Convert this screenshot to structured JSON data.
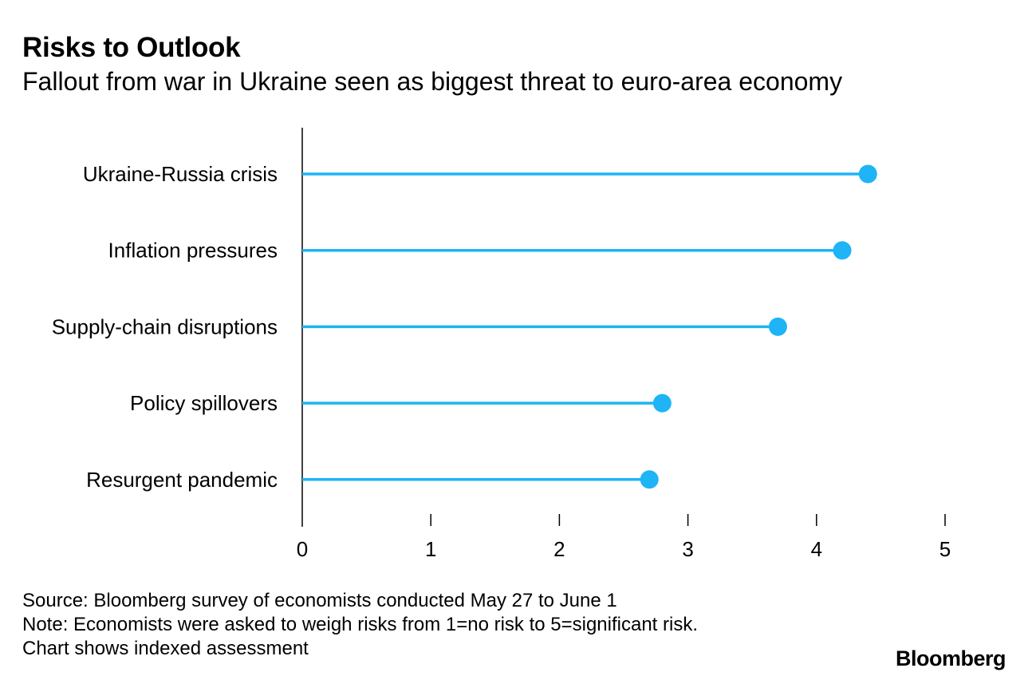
{
  "title": "Risks to Outlook",
  "subtitle": "Fallout from war in Ukraine seen as biggest threat to euro-area economy",
  "chart_data": {
    "type": "lollipop",
    "title": "Risks to Outlook",
    "subtitle": "Fallout from war in Ukraine seen as biggest threat to euro-area economy",
    "categories": [
      "Ukraine-Russia crisis",
      "Inflation pressures",
      "Supply-chain disruptions",
      "Policy spillovers",
      "Resurgent pandemic"
    ],
    "values": [
      4.4,
      4.2,
      3.7,
      2.8,
      2.7
    ],
    "xlim": [
      0,
      5
    ],
    "xticks": [
      "0",
      "1",
      "2",
      "3",
      "4",
      "5"
    ],
    "xlabel": "",
    "ylabel": "",
    "color": "#1eb4f5",
    "grid": false
  },
  "footer": {
    "source": "Source: Bloomberg survey of economists conducted May 27 to June 1",
    "note_line1": "Note: Economists were asked to weigh risks from 1=no risk to 5=significant risk.",
    "note_line2": "Chart shows indexed assessment"
  },
  "brand": "Bloomberg"
}
